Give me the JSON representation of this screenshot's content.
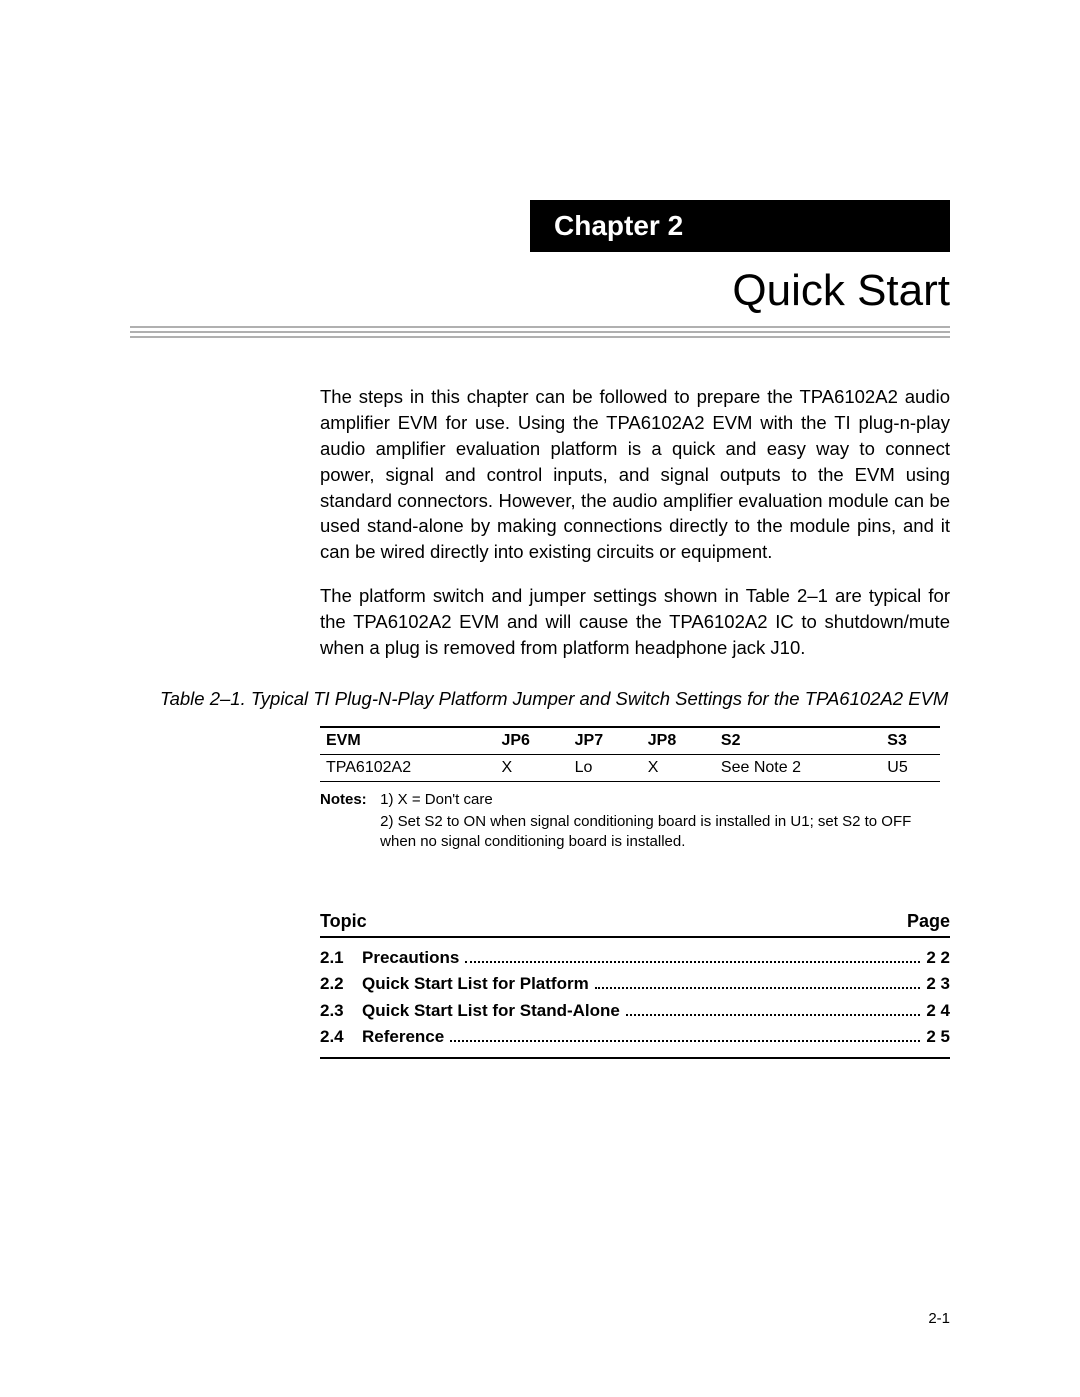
{
  "chapter": {
    "label": "Chapter 2",
    "title": "Quick Start"
  },
  "paragraphs": {
    "p1": "The steps in this chapter can be followed to prepare the TPA6102A2 audio amplifier EVM for use. Using the TPA6102A2 EVM with the TI plug-n-play audio amplifier evaluation platform is a quick and easy way to connect power, signal and control inputs, and signal outputs to the EVM using standard connectors. However, the audio amplifier evaluation module can be used stand-alone by making connections directly to the module pins, and it can be wired directly into existing circuits or equipment.",
    "p2": "The platform switch and jumper settings shown in Table 2–1 are typical for the TPA6102A2 EVM and will cause the TPA6102A2 IC to shutdown/mute when a plug is removed from platform headphone jack J10."
  },
  "table": {
    "caption": "Table 2–1. Typical TI Plug-N-Play Platform Jumper and Switch Settings for the TPA6102A2 EVM",
    "headers": {
      "c0": "EVM",
      "c1": "JP6",
      "c2": "JP7",
      "c3": "JP8",
      "c4": "S2",
      "c5": "S3"
    },
    "row": {
      "c0": "TPA6102A2",
      "c1": "X",
      "c2": "Lo",
      "c3": "X",
      "c4": "See Note 2",
      "c5": "U5"
    }
  },
  "notes": {
    "label": "Notes:",
    "n1": "1)  X = Don't care",
    "n2": "2)  Set S2 to ON when signal conditioning board is installed in U1; set S2 to OFF when no signal conditioning board is installed."
  },
  "toc": {
    "topic_label": "Topic",
    "page_label": "Page",
    "items": [
      {
        "num": "2.1",
        "title": "Precautions",
        "page": "2 2"
      },
      {
        "num": "2.2",
        "title": "Quick Start List for Platform",
        "page": "2 3"
      },
      {
        "num": "2.3",
        "title": "Quick Start List for Stand-Alone",
        "page": "2 4"
      },
      {
        "num": "2.4",
        "title": "Reference",
        "page": "2 5"
      }
    ]
  },
  "page_number": "2-1"
}
